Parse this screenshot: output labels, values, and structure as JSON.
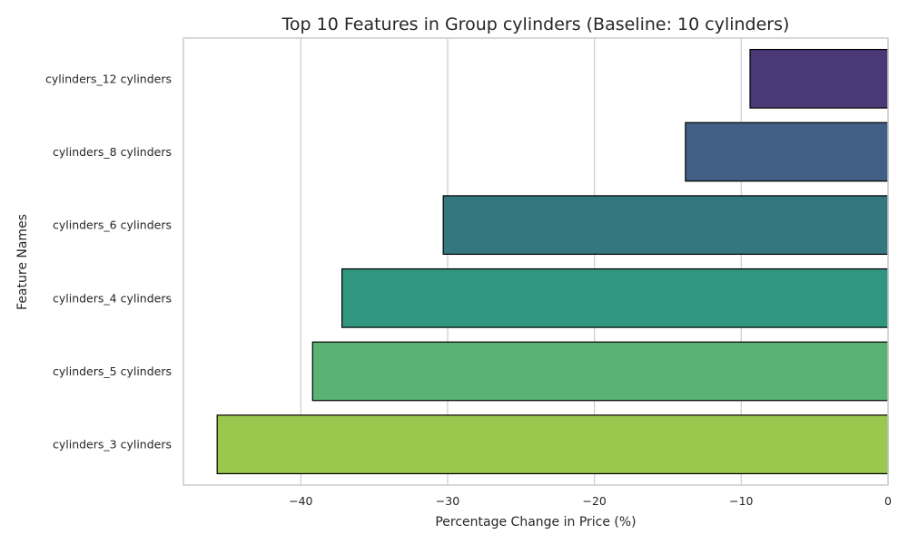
{
  "chart_data": {
    "type": "bar",
    "orientation": "horizontal",
    "title": "Top 10 Features in Group cylinders (Baseline: 10 cylinders)",
    "xlabel": "Percentage Change in Price (%)",
    "ylabel": "Feature Names",
    "xlim": [
      -48,
      0
    ],
    "xticks": [
      -40,
      -30,
      -20,
      -10,
      0
    ],
    "xtick_labels": [
      "−40",
      "−30",
      "−20",
      "−10",
      "0"
    ],
    "grid": true,
    "categories": [
      "cylinders_12 cylinders",
      "cylinders_8 cylinders",
      "cylinders_6 cylinders",
      "cylinders_4 cylinders",
      "cylinders_5 cylinders",
      "cylinders_3 cylinders"
    ],
    "values": [
      -9.4,
      -13.8,
      -30.3,
      -37.2,
      -39.2,
      -45.7
    ],
    "colors": [
      "#4b3877",
      "#415f85",
      "#34777f",
      "#319680",
      "#5ab373",
      "#9ac84e"
    ]
  }
}
